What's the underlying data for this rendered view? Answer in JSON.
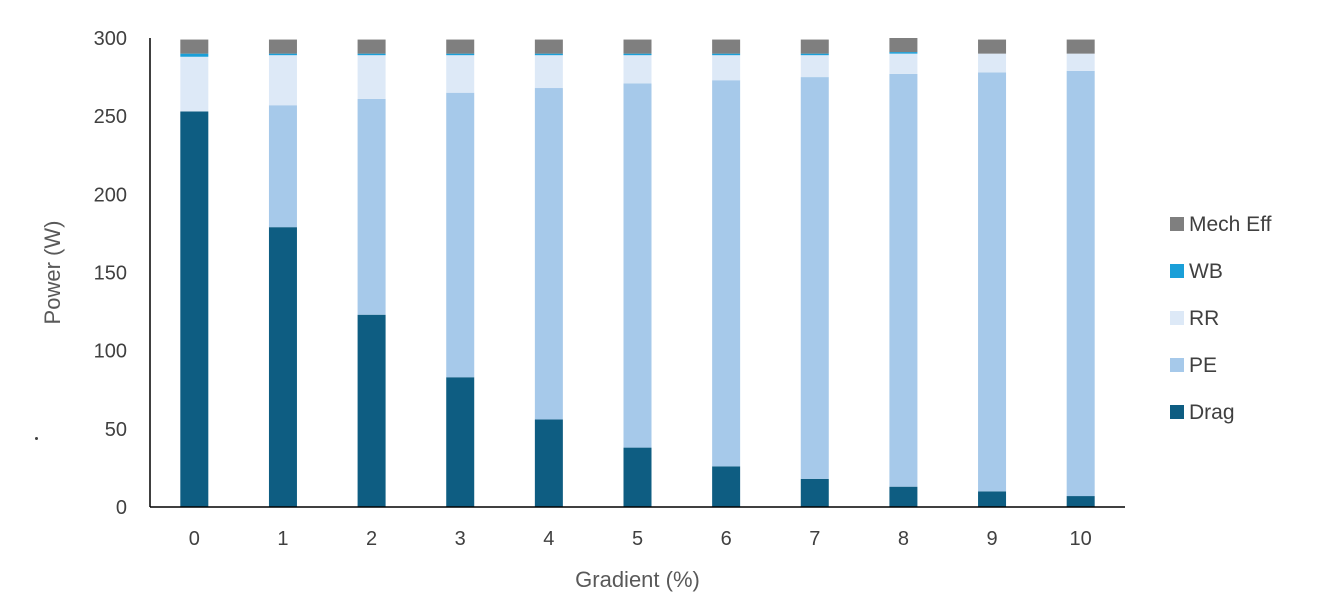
{
  "chart_data": {
    "type": "bar",
    "stacked": true,
    "title": "",
    "xlabel": "Gradient (%)",
    "ylabel": "Power (W)",
    "ylim": [
      0,
      300
    ],
    "yticks": [
      "0",
      "50",
      "100",
      "150",
      "200",
      "250",
      "300"
    ],
    "categories": [
      "0",
      "1",
      "2",
      "3",
      "4",
      "5",
      "6",
      "7",
      "8",
      "9",
      "10"
    ],
    "series": [
      {
        "name": "Drag",
        "color": "#0e5d82",
        "values": [
          253,
          179,
          123,
          83,
          56,
          38,
          26,
          18,
          13,
          10,
          7
        ]
      },
      {
        "name": "PE",
        "color": "#a6c9ea",
        "values": [
          0,
          78,
          138,
          182,
          212,
          233,
          247,
          257,
          264,
          268,
          272
        ]
      },
      {
        "name": "RR",
        "color": "#dde9f7",
        "values": [
          35,
          32,
          28,
          24,
          21,
          18,
          16,
          14,
          13,
          12,
          11
        ]
      },
      {
        "name": "WB",
        "color": "#1a9fd8",
        "values": [
          2,
          1,
          1,
          1,
          1,
          1,
          1,
          1,
          1,
          0,
          0
        ]
      },
      {
        "name": "Mech Eff",
        "color": "#7f7f7f",
        "values": [
          9,
          9,
          9,
          9,
          9,
          9,
          9,
          9,
          9,
          9,
          9
        ]
      }
    ],
    "legend": {
      "position": "right",
      "order": [
        "Mech Eff",
        "WB",
        "RR",
        "PE",
        "Drag"
      ]
    },
    "grid": false,
    "axis_color": "#000000"
  }
}
